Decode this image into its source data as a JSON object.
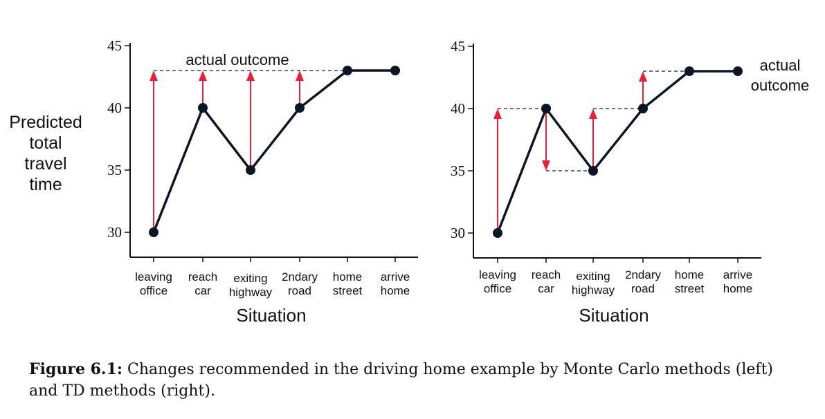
{
  "figure": {
    "ylabel_lines": [
      "Predicted",
      "total",
      "travel",
      "time"
    ],
    "caption_label": "Figure 6.1:",
    "caption_text": " Changes recommended in the driving home example by Monte Carlo methods (left) and TD methods (right)."
  },
  "chart_data": [
    {
      "type": "line",
      "method": "Monte Carlo",
      "categories": [
        [
          "leaving",
          "office"
        ],
        [
          "reach",
          "car"
        ],
        [
          "exiting",
          "highway"
        ],
        [
          "2ndary",
          "road"
        ],
        [
          "home",
          "street"
        ],
        [
          "arrive",
          "home"
        ]
      ],
      "values": [
        30,
        40,
        35,
        40,
        43,
        43
      ],
      "xlabel": "Situation",
      "ylabel": "Predicted total travel time",
      "yticks": [
        30,
        35,
        40,
        45
      ],
      "ylim": [
        28,
        45
      ],
      "annotation": "actual outcome",
      "actual_outcome": 43,
      "arrows": [
        {
          "from": 30,
          "to": 43,
          "index": 0
        },
        {
          "from": 40,
          "to": 43,
          "index": 1
        },
        {
          "from": 35,
          "to": 43,
          "index": 2
        },
        {
          "from": 40,
          "to": 43,
          "index": 3
        }
      ],
      "colors": {
        "line": "#0c1622",
        "arrow": "#e8203a",
        "dashed": "#2a3c8f"
      }
    },
    {
      "type": "line",
      "method": "TD",
      "categories": [
        [
          "leaving",
          "office"
        ],
        [
          "reach",
          "car"
        ],
        [
          "exiting",
          "highway"
        ],
        [
          "2ndary",
          "road"
        ],
        [
          "home",
          "street"
        ],
        [
          "arrive",
          "home"
        ]
      ],
      "values": [
        30,
        40,
        35,
        40,
        43,
        43
      ],
      "xlabel": "Situation",
      "yticks": [
        30,
        35,
        40,
        45
      ],
      "ylim": [
        28,
        45
      ],
      "annotation_lines": [
        "actual",
        "outcome"
      ],
      "arrows": [
        {
          "from": 30,
          "to": 40,
          "index": 0
        },
        {
          "from": 40,
          "to": 35,
          "index": 1
        },
        {
          "from": 35,
          "to": 40,
          "index": 2
        },
        {
          "from": 40,
          "to": 43,
          "index": 3
        }
      ],
      "colors": {
        "line": "#0c1622",
        "arrow": "#e8203a",
        "dashed": "#2a3c8f"
      }
    }
  ]
}
